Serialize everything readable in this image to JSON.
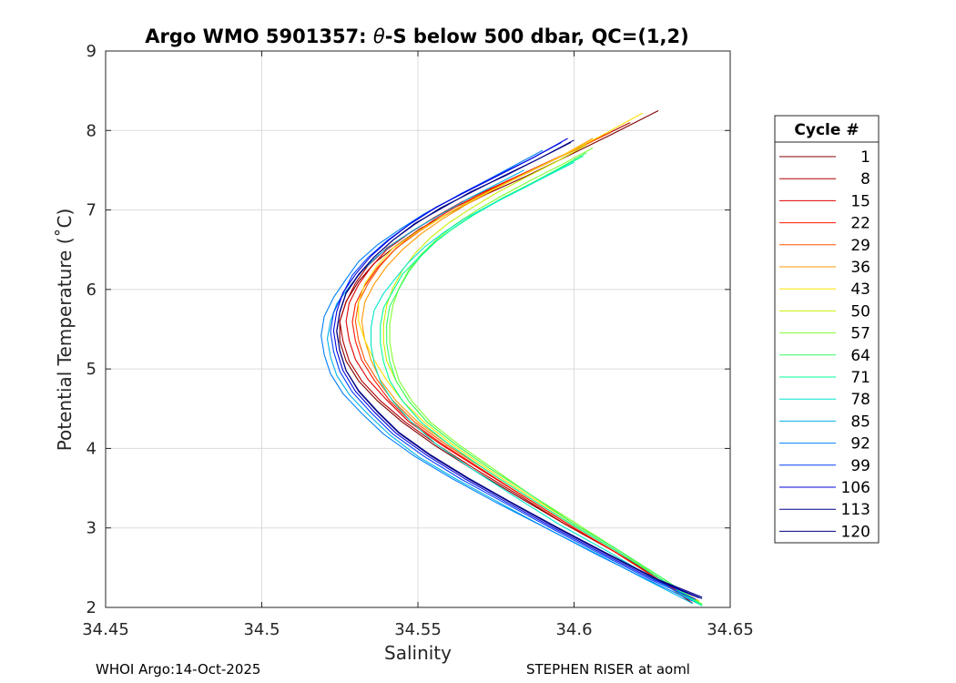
{
  "chart_data": {
    "type": "line",
    "title_prefix": "Argo WMO 5901357: ",
    "title_theta": "θ",
    "title_suffix": "-S below 500 dbar,  QC=(1,2)",
    "xlabel": "Salinity",
    "ylabel": "Potential Temperature (˚C)",
    "xlim": [
      34.45,
      34.65
    ],
    "ylim": [
      2,
      9
    ],
    "x_ticks": [
      "34.45",
      "34.5",
      "34.55",
      "34.6",
      "34.65"
    ],
    "y_ticks": [
      "2",
      "3",
      "4",
      "5",
      "6",
      "7",
      "8",
      "9"
    ],
    "grid": true,
    "legend_title": "Cycle #",
    "legend_position": "right",
    "series": [
      {
        "name": "1",
        "color": "#800000",
        "x": [
          34.627,
          34.612,
          34.598,
          34.585,
          34.572,
          34.561,
          34.551,
          34.543,
          34.536,
          34.531,
          34.527,
          34.525,
          34.525,
          34.527,
          34.531,
          34.537,
          34.545,
          34.555,
          34.567,
          34.581,
          34.597,
          34.613,
          34.628,
          34.638
        ],
        "y": [
          8.25,
          7.95,
          7.68,
          7.43,
          7.2,
          6.98,
          6.77,
          6.55,
          6.33,
          6.1,
          5.85,
          5.6,
          5.35,
          5.1,
          4.85,
          4.6,
          4.33,
          4.05,
          3.75,
          3.42,
          3.05,
          2.7,
          2.35,
          2.05
        ]
      },
      {
        "name": "8",
        "color": "#b30000",
        "x": [
          34.618,
          34.605,
          34.592,
          34.58,
          34.568,
          34.557,
          34.548,
          34.54,
          34.534,
          34.53,
          34.527,
          34.525,
          34.526,
          34.528,
          34.532,
          34.538,
          34.546,
          34.556,
          34.568,
          34.582,
          34.597,
          34.613,
          34.627,
          34.638
        ],
        "y": [
          8.1,
          7.85,
          7.6,
          7.37,
          7.15,
          6.94,
          6.73,
          6.52,
          6.3,
          6.08,
          5.84,
          5.6,
          5.35,
          5.1,
          4.85,
          4.6,
          4.33,
          4.05,
          3.75,
          3.42,
          3.05,
          2.7,
          2.35,
          2.05
        ]
      },
      {
        "name": "15",
        "color": "#e00000",
        "x": [
          34.61,
          34.598,
          34.586,
          34.575,
          34.564,
          34.555,
          34.547,
          34.54,
          34.535,
          34.531,
          34.528,
          34.527,
          34.528,
          34.53,
          34.534,
          34.54,
          34.547,
          34.557,
          34.569,
          34.583,
          34.598,
          34.613,
          34.627,
          34.639
        ],
        "y": [
          7.95,
          7.72,
          7.5,
          7.3,
          7.1,
          6.9,
          6.7,
          6.5,
          6.28,
          6.06,
          5.83,
          5.6,
          5.36,
          5.12,
          4.87,
          4.61,
          4.34,
          4.06,
          3.76,
          3.42,
          3.05,
          2.7,
          2.35,
          2.06
        ]
      },
      {
        "name": "22",
        "color": "#ff1a00",
        "x": [
          34.605,
          34.594,
          34.583,
          34.573,
          34.563,
          34.555,
          34.548,
          34.542,
          34.537,
          34.533,
          34.53,
          34.529,
          34.53,
          34.532,
          34.536,
          34.541,
          34.548,
          34.558,
          34.57,
          34.583,
          34.598,
          34.613,
          34.627,
          34.639
        ],
        "y": [
          7.85,
          7.64,
          7.44,
          7.25,
          7.06,
          6.87,
          6.68,
          6.48,
          6.27,
          6.05,
          5.82,
          5.59,
          5.35,
          5.11,
          4.86,
          4.6,
          4.33,
          4.05,
          3.75,
          3.42,
          3.05,
          2.7,
          2.35,
          2.07
        ]
      },
      {
        "name": "29",
        "color": "#ff5500",
        "x": [
          34.612,
          34.6,
          34.588,
          34.577,
          34.567,
          34.558,
          34.55,
          34.543,
          34.538,
          34.534,
          34.531,
          34.53,
          34.531,
          34.533,
          34.537,
          34.542,
          34.549,
          34.559,
          34.571,
          34.584,
          34.599,
          34.614,
          34.628,
          34.639
        ],
        "y": [
          7.98,
          7.75,
          7.53,
          7.32,
          7.12,
          6.92,
          6.72,
          6.52,
          6.3,
          6.07,
          5.84,
          5.6,
          5.36,
          5.11,
          4.86,
          4.6,
          4.33,
          4.05,
          3.75,
          3.42,
          3.05,
          2.7,
          2.35,
          2.08
        ]
      },
      {
        "name": "36",
        "color": "#ff9900",
        "x": [
          34.606,
          34.596,
          34.585,
          34.575,
          34.566,
          34.558,
          34.551,
          34.545,
          34.54,
          34.536,
          34.533,
          34.532,
          34.533,
          34.535,
          34.538,
          34.543,
          34.55,
          34.56,
          34.571,
          34.584,
          34.599,
          34.614,
          34.628,
          34.64
        ],
        "y": [
          7.9,
          7.68,
          7.47,
          7.27,
          7.08,
          6.89,
          6.7,
          6.5,
          6.29,
          6.07,
          5.84,
          5.6,
          5.36,
          5.11,
          4.86,
          4.6,
          4.33,
          4.05,
          3.75,
          3.42,
          3.05,
          2.7,
          2.35,
          2.08
        ]
      },
      {
        "name": "43",
        "color": "#ffe000",
        "x": [
          34.622,
          34.608,
          34.594,
          34.581,
          34.569,
          34.559,
          34.55,
          34.542,
          34.537,
          34.533,
          34.531,
          34.531,
          34.533,
          34.536,
          34.54,
          34.545,
          34.552,
          34.561,
          34.572,
          34.585,
          34.6,
          34.615,
          34.628,
          34.64
        ],
        "y": [
          8.22,
          7.92,
          7.64,
          7.39,
          7.16,
          6.94,
          6.73,
          6.52,
          6.3,
          6.07,
          5.84,
          5.6,
          5.36,
          5.11,
          4.86,
          4.6,
          4.33,
          4.05,
          3.75,
          3.42,
          3.05,
          2.7,
          2.35,
          2.07
        ]
      },
      {
        "name": "50",
        "color": "#ccee00",
        "x": [
          34.604,
          34.594,
          34.584,
          34.575,
          34.567,
          34.56,
          34.554,
          34.549,
          34.545,
          34.542,
          34.54,
          34.539,
          34.539,
          34.54,
          34.543,
          34.547,
          34.553,
          34.562,
          34.573,
          34.586,
          34.6,
          34.615,
          34.628,
          34.64
        ],
        "y": [
          7.82,
          7.6,
          7.4,
          7.21,
          7.02,
          6.84,
          6.65,
          6.45,
          6.24,
          6.02,
          5.8,
          5.57,
          5.34,
          5.1,
          4.85,
          4.6,
          4.33,
          4.05,
          3.75,
          3.42,
          3.05,
          2.7,
          2.35,
          2.06
        ]
      },
      {
        "name": "57",
        "color": "#80ff33",
        "x": [
          34.606,
          34.596,
          34.586,
          34.577,
          34.569,
          34.562,
          34.556,
          34.551,
          34.547,
          34.544,
          34.542,
          34.541,
          34.541,
          34.542,
          34.544,
          34.548,
          34.554,
          34.563,
          34.574,
          34.586,
          34.601,
          34.615,
          34.629,
          34.641
        ],
        "y": [
          7.78,
          7.57,
          7.37,
          7.18,
          7.0,
          6.82,
          6.63,
          6.44,
          6.24,
          6.02,
          5.8,
          5.57,
          5.34,
          5.1,
          4.85,
          4.6,
          4.33,
          4.05,
          3.75,
          3.42,
          3.05,
          2.7,
          2.35,
          2.04
        ]
      },
      {
        "name": "64",
        "color": "#33ff66",
        "x": [
          34.604,
          34.595,
          34.586,
          34.577,
          34.569,
          34.562,
          34.556,
          34.551,
          34.547,
          34.544,
          34.541,
          34.54,
          34.54,
          34.541,
          34.543,
          34.547,
          34.553,
          34.562,
          34.573,
          34.586,
          34.6,
          34.615,
          34.629,
          34.641
        ],
        "y": [
          7.72,
          7.52,
          7.33,
          7.15,
          6.97,
          6.79,
          6.61,
          6.42,
          6.22,
          6.01,
          5.79,
          5.56,
          5.33,
          5.09,
          4.85,
          4.6,
          4.33,
          4.05,
          3.75,
          3.42,
          3.05,
          2.7,
          2.35,
          2.03
        ]
      },
      {
        "name": "71",
        "color": "#00ff99",
        "x": [
          34.603,
          34.594,
          34.585,
          34.576,
          34.568,
          34.561,
          34.555,
          34.55,
          34.545,
          34.542,
          34.539,
          34.538,
          34.538,
          34.539,
          34.541,
          34.545,
          34.551,
          34.56,
          34.571,
          34.584,
          34.599,
          34.614,
          34.628,
          34.641
        ],
        "y": [
          7.68,
          7.49,
          7.3,
          7.12,
          6.94,
          6.76,
          6.58,
          6.39,
          6.19,
          5.98,
          5.77,
          5.55,
          5.32,
          5.09,
          4.85,
          4.6,
          4.33,
          4.05,
          3.75,
          3.42,
          3.05,
          2.7,
          2.35,
          2.02
        ]
      },
      {
        "name": "78",
        "color": "#00e6cc",
        "x": [
          34.6,
          34.591,
          34.582,
          34.573,
          34.565,
          34.558,
          34.552,
          34.547,
          34.543,
          34.539,
          34.536,
          34.535,
          34.535,
          34.536,
          34.538,
          34.542,
          34.548,
          34.556,
          34.567,
          34.58,
          34.595,
          34.611,
          34.626,
          34.64
        ],
        "y": [
          7.6,
          7.42,
          7.24,
          7.06,
          6.89,
          6.71,
          6.53,
          6.34,
          6.15,
          5.95,
          5.74,
          5.52,
          5.3,
          5.07,
          4.84,
          4.59,
          4.33,
          4.05,
          3.75,
          3.42,
          3.05,
          2.7,
          2.35,
          2.04
        ]
      },
      {
        "name": "85",
        "color": "#00b3e6",
        "x": [
          34.584,
          34.575,
          34.566,
          34.558,
          34.55,
          34.543,
          34.537,
          34.532,
          34.528,
          34.524,
          34.522,
          34.521,
          34.522,
          34.524,
          34.528,
          34.534,
          34.541,
          34.55,
          34.562,
          34.576,
          34.591,
          34.608,
          34.624,
          34.638
        ],
        "y": [
          7.5,
          7.32,
          7.14,
          6.96,
          6.78,
          6.6,
          6.42,
          6.23,
          6.03,
          5.82,
          5.6,
          5.38,
          5.15,
          4.92,
          4.68,
          4.43,
          4.17,
          3.9,
          3.62,
          3.32,
          3.0,
          2.66,
          2.33,
          2.05
        ]
      },
      {
        "name": "92",
        "color": "#0080ff",
        "x": [
          34.59,
          34.58,
          34.57,
          34.561,
          34.552,
          34.544,
          34.537,
          34.531,
          34.527,
          34.523,
          34.52,
          34.519,
          34.52,
          34.522,
          34.526,
          34.532,
          34.539,
          34.549,
          34.561,
          34.575,
          34.591,
          34.607,
          34.624,
          34.638
        ],
        "y": [
          7.75,
          7.54,
          7.33,
          7.14,
          6.95,
          6.75,
          6.56,
          6.35,
          6.13,
          5.9,
          5.66,
          5.42,
          5.18,
          4.94,
          4.69,
          4.44,
          4.18,
          3.9,
          3.62,
          3.32,
          3.0,
          2.67,
          2.34,
          2.08
        ]
      },
      {
        "name": "99",
        "color": "#0040ff",
        "x": [
          34.596,
          34.585,
          34.574,
          34.564,
          34.555,
          34.547,
          34.54,
          34.534,
          34.529,
          34.526,
          34.523,
          34.522,
          34.523,
          34.525,
          34.529,
          34.535,
          34.542,
          34.552,
          34.564,
          34.578,
          34.593,
          34.609,
          34.625,
          34.639
        ],
        "y": [
          7.85,
          7.62,
          7.41,
          7.21,
          7.01,
          6.81,
          6.61,
          6.4,
          6.18,
          5.95,
          5.71,
          5.47,
          5.22,
          4.97,
          4.71,
          4.45,
          4.18,
          3.9,
          3.61,
          3.31,
          2.99,
          2.66,
          2.34,
          2.1
        ]
      },
      {
        "name": "106",
        "color": "#0000e0",
        "x": [
          34.598,
          34.587,
          34.576,
          34.566,
          34.556,
          34.548,
          34.541,
          34.535,
          34.53,
          34.526,
          34.524,
          34.523,
          34.524,
          34.526,
          34.53,
          34.536,
          34.543,
          34.553,
          34.565,
          34.579,
          34.594,
          34.61,
          34.626,
          34.64
        ],
        "y": [
          7.9,
          7.66,
          7.44,
          7.24,
          7.04,
          6.84,
          6.63,
          6.42,
          6.19,
          5.96,
          5.72,
          5.48,
          5.23,
          4.98,
          4.72,
          4.46,
          4.19,
          3.91,
          3.62,
          3.31,
          2.99,
          2.66,
          2.34,
          2.12
        ]
      },
      {
        "name": "113",
        "color": "#00008c",
        "x": [
          34.6,
          34.589,
          34.578,
          34.567,
          34.558,
          34.549,
          34.542,
          34.536,
          34.531,
          34.527,
          34.525,
          34.524,
          34.525,
          34.527,
          34.531,
          34.537,
          34.544,
          34.554,
          34.566,
          34.58,
          34.595,
          34.611,
          34.627,
          34.641
        ],
        "y": [
          7.88,
          7.65,
          7.43,
          7.23,
          7.03,
          6.83,
          6.62,
          6.41,
          6.19,
          5.96,
          5.72,
          5.48,
          5.23,
          4.98,
          4.73,
          4.47,
          4.2,
          3.92,
          3.63,
          3.32,
          3.0,
          2.67,
          2.35,
          2.13
        ]
      },
      {
        "name": "120",
        "color": "#000080",
        "x": [
          34.599,
          34.588,
          34.577,
          34.567,
          34.557,
          34.549,
          34.542,
          34.536,
          34.531,
          34.527,
          34.525,
          34.524,
          34.525,
          34.527,
          34.531,
          34.537,
          34.544,
          34.554,
          34.566,
          34.58,
          34.595,
          34.611,
          34.627,
          34.641
        ],
        "y": [
          7.85,
          7.63,
          7.42,
          7.22,
          7.02,
          6.82,
          6.62,
          6.41,
          6.18,
          5.95,
          5.71,
          5.47,
          5.23,
          4.98,
          4.72,
          4.46,
          4.19,
          3.91,
          3.62,
          3.31,
          2.99,
          2.66,
          2.34,
          2.11
        ]
      }
    ]
  },
  "footer": {
    "left": "WHOI Argo:14-Oct-2025",
    "right": "STEPHEN RISER at aoml"
  }
}
